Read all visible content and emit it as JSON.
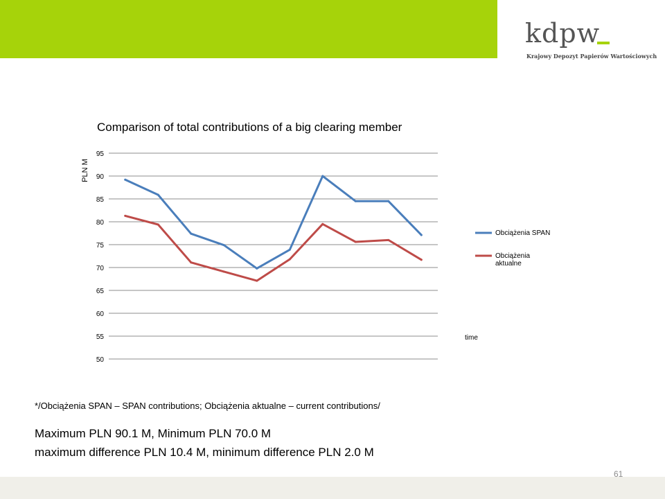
{
  "header": {
    "logo_text": "kdpw_",
    "logo_subtitle": "Krajowy Depozyt Papierów Wartościowych",
    "accent_color": "#a6d30a"
  },
  "chart_data": {
    "type": "line",
    "title": "Comparison of total contributions of a big clearing member",
    "ylabel": "PLN M",
    "xlabel": "time",
    "ylim": [
      50,
      95
    ],
    "yticks": [
      50,
      55,
      60,
      65,
      70,
      75,
      80,
      85,
      90,
      95
    ],
    "x": [
      1,
      2,
      3,
      4,
      5,
      6,
      7,
      8,
      9,
      10
    ],
    "grid": true,
    "legend_position": "right",
    "series": [
      {
        "name": "Obciążenia SPAN",
        "color": "#4a7ebb",
        "values": [
          89.2,
          85.9,
          77.4,
          74.9,
          69.8,
          73.9,
          90.0,
          84.5,
          84.5,
          77.1
        ]
      },
      {
        "name": "Obciążenia aktualne",
        "color": "#be4b48",
        "values": [
          81.3,
          79.4,
          71.1,
          69.1,
          67.1,
          71.8,
          79.5,
          75.6,
          76.0,
          71.7
        ]
      }
    ]
  },
  "footnote": "*/Obciążenia SPAN – SPAN contributions; Obciążenia aktualne – current contributions/",
  "summary": {
    "line1": "Maximum  PLN 90.1 M, Minimum PLN 70.0 M",
    "line2": "maximum difference PLN 10.4 M, minimum difference PLN 2.0 M"
  },
  "page_number": "61"
}
